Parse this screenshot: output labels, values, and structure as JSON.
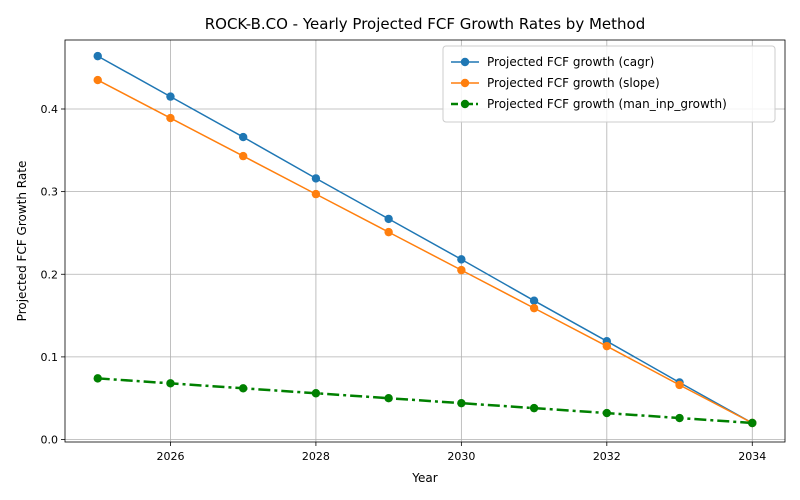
{
  "chart_data": {
    "type": "line",
    "title": "ROCK-B.CO - Yearly Projected FCF Growth Rates by Method",
    "xlabel": "Year",
    "ylabel": "Projected FCF Growth Rate",
    "x": [
      2025,
      2026,
      2027,
      2028,
      2029,
      2030,
      2031,
      2032,
      2033,
      2034
    ],
    "xlim": [
      2024.55,
      2034.45
    ],
    "ylim": [
      -0.003,
      0.4835
    ],
    "xticks": [
      2026,
      2028,
      2030,
      2032,
      2034
    ],
    "xtick_labels": [
      "2026",
      "2028",
      "2030",
      "2032",
      "2034"
    ],
    "yticks": [
      0.0,
      0.1,
      0.2,
      0.3,
      0.4
    ],
    "ytick_labels": [
      "0.0",
      "0.1",
      "0.2",
      "0.3",
      "0.4"
    ],
    "grid": true,
    "legend_position": "upper right",
    "series": [
      {
        "name": "Projected FCF growth (cagr)",
        "color": "#1f77b4",
        "line_style": "solid",
        "marker": "circle",
        "values": [
          0.464,
          0.415,
          0.366,
          0.316,
          0.267,
          0.218,
          0.168,
          0.119,
          0.069,
          0.02
        ]
      },
      {
        "name": "Projected FCF growth (slope)",
        "color": "#ff7f0e",
        "line_style": "solid",
        "marker": "circle",
        "values": [
          0.435,
          0.389,
          0.343,
          0.297,
          0.251,
          0.205,
          0.159,
          0.113,
          0.066,
          0.02
        ]
      },
      {
        "name": "Projected FCF growth (man_inp_growth)",
        "color": "#008000",
        "line_style": "dashdot",
        "marker": "circle",
        "values": [
          0.074,
          0.068,
          0.062,
          0.056,
          0.05,
          0.044,
          0.038,
          0.032,
          0.026,
          0.02
        ]
      }
    ]
  }
}
